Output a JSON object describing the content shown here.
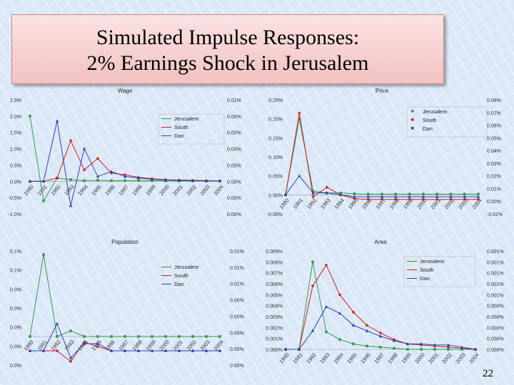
{
  "slide": {
    "title_line1": "Simulated Impulse Responses:",
    "title_line2": "2% Earnings Shock in Jerusalem",
    "page_number": "22",
    "corner_mark": "——"
  },
  "colors": {
    "Jerusalem": "#2e9e48",
    "South": "#c8201e",
    "Dan": "#2846b4"
  },
  "chart_data": [
    {
      "type": "line",
      "title": "Wage",
      "categories": [
        "1990",
        "1991",
        "1992",
        "1993",
        "1994",
        "1995",
        "1996",
        "1997",
        "1998",
        "1999",
        "2000",
        "2001",
        "2002",
        "2003",
        "2004"
      ],
      "left_ticks": [
        "2.5%",
        "2.0%",
        "1.5%",
        "1.0%",
        "0.5%",
        "0.0%",
        "-0.5%",
        "-1.0%"
      ],
      "right_ticks": [
        "0.01%",
        "0.00%",
        "0.00%",
        "0.00%",
        "0.00%",
        "0.00%",
        "0.00%",
        "0.00%"
      ],
      "ylim": [
        -1.0,
        2.5
      ],
      "legend": {
        "position": "right",
        "box": true,
        "marker_style": "line"
      },
      "series": [
        {
          "name": "Jerusalem",
          "axis": "left",
          "values": [
            2.0,
            -0.6,
            0.1,
            0.05,
            0.02,
            0.03,
            0.02,
            0.02,
            0.02,
            0.02,
            0.01,
            0.01,
            0.01,
            0.01,
            0.01
          ]
        },
        {
          "name": "South",
          "axis": "left",
          "values": [
            0.0,
            0.0,
            0.1,
            1.25,
            0.35,
            0.7,
            0.25,
            0.2,
            0.12,
            0.08,
            0.05,
            0.04,
            0.03,
            0.02,
            0.01
          ]
        },
        {
          "name": "Dan",
          "axis": "left",
          "values": [
            0.0,
            0.0,
            1.85,
            -0.75,
            1.0,
            0.15,
            0.3,
            0.15,
            0.1,
            0.06,
            0.04,
            0.03,
            0.02,
            0.01,
            0.01
          ]
        }
      ]
    },
    {
      "type": "line",
      "title": "Price",
      "categories": [
        "1990",
        "1991",
        "1992",
        "1993",
        "1994",
        "1995",
        "1996",
        "1997",
        "1998",
        "1999",
        "2000",
        "2001",
        "2002",
        "2003",
        "2004"
      ],
      "left_ticks": [
        "0.25%",
        "0.20%",
        "0.15%",
        "0.10%",
        "0.05%",
        "0.00%",
        "-0.05%"
      ],
      "right_ticks": [
        "0.08%",
        "0.07%",
        "0.06%",
        "0.05%",
        "0.04%",
        "0.03%",
        "0.02%",
        "0.01%",
        "0.00%",
        "-0.01%"
      ],
      "ylim": [
        -0.05,
        0.25
      ],
      "legend": {
        "position": "top-right",
        "box": true,
        "marker_style": "marker"
      },
      "series": [
        {
          "name": "Jerusalem",
          "axis": "left",
          "values": [
            0.0,
            0.2,
            0.01,
            0.005,
            0.005,
            0.003,
            0.002,
            0.002,
            0.002,
            0.002,
            0.002,
            0.002,
            0.002,
            0.002,
            0.002
          ]
        },
        {
          "name": "South",
          "axis": "left",
          "values": [
            0.0,
            0.215,
            -0.005,
            0.02,
            0.0,
            -0.01,
            -0.012,
            -0.012,
            -0.012,
            -0.012,
            -0.012,
            -0.012,
            -0.012,
            -0.012,
            -0.012
          ]
        },
        {
          "name": "Dan",
          "axis": "left",
          "values": [
            0.0,
            0.05,
            0.005,
            0.005,
            0.0,
            -0.005,
            -0.005,
            -0.005,
            -0.005,
            -0.005,
            -0.005,
            -0.005,
            -0.005,
            -0.005,
            -0.005
          ]
        }
      ]
    },
    {
      "type": "line",
      "title": "Population",
      "categories": [
        "1990",
        "1991",
        "1992",
        "1993",
        "1994",
        "1995",
        "1996",
        "1997",
        "1998",
        "1999",
        "2000",
        "2001",
        "2002",
        "2003",
        "2004"
      ],
      "left_ticks": [
        "0.1%",
        "0.1%",
        "0.0%",
        "0.0%",
        "0.0%",
        "0.0%",
        "0.0%"
      ],
      "right_ticks": [
        "0.01%",
        "0.01%",
        "0.01%",
        "0.00%",
        "0.00%",
        "0.00%",
        "0.00%",
        "0.00%"
      ],
      "ylim": [
        -0.04,
        0.12
      ],
      "legend": {
        "position": "top-right",
        "box": false,
        "marker_style": "line"
      },
      "series": [
        {
          "name": "Jerusalem",
          "axis": "left",
          "values": [
            0.0,
            0.115,
            0.0,
            0.008,
            0.0,
            0.0,
            0.0,
            0.0,
            0.0,
            0.0,
            0.0,
            0.0,
            0.0,
            0.0,
            0.0
          ]
        },
        {
          "name": "South",
          "axis": "left",
          "values": [
            -0.02,
            -0.02,
            -0.02,
            -0.035,
            -0.008,
            -0.014,
            -0.02,
            -0.02,
            -0.02,
            -0.02,
            -0.02,
            -0.02,
            -0.02,
            -0.02,
            -0.02
          ]
        },
        {
          "name": "Dan",
          "axis": "left",
          "values": [
            -0.02,
            -0.02,
            0.018,
            -0.03,
            -0.01,
            -0.01,
            -0.02,
            -0.02,
            -0.02,
            -0.02,
            -0.02,
            -0.02,
            -0.02,
            -0.02,
            -0.02
          ]
        }
      ]
    },
    {
      "type": "line",
      "title": "Area",
      "categories": [
        "1990",
        "1991",
        "1992",
        "1993",
        "1994",
        "1995",
        "1996",
        "1997",
        "1998",
        "1999",
        "2000",
        "2001",
        "2002",
        "2003",
        "2004"
      ],
      "left_ticks": [
        "0.009%",
        "0.008%",
        "0.007%",
        "0.006%",
        "0.005%",
        "0.004%",
        "0.003%",
        "0.002%",
        "0.001%",
        "0.000%"
      ],
      "right_ticks": [
        "0.001%",
        "0.001%",
        "0.001%",
        "0.001%",
        "0.001%",
        "0.000%",
        "0.000%",
        "0.000%",
        "0.000%",
        "0.000%"
      ],
      "ylim": [
        0.0,
        0.009
      ],
      "legend": {
        "position": "top-right",
        "box": true,
        "marker_style": "line"
      },
      "series": [
        {
          "name": "Jerusalem",
          "axis": "left",
          "values": [
            0.0,
            0.0,
            0.008,
            0.0016,
            0.0009,
            0.0005,
            0.0003,
            0.0002,
            0.0001,
            0.0,
            0.0,
            0.0,
            0.0,
            0.0,
            0.0
          ]
        },
        {
          "name": "South",
          "axis": "left",
          "values": [
            0.0,
            0.0,
            0.0058,
            0.0077,
            0.005,
            0.0034,
            0.0022,
            0.0015,
            0.0009,
            0.0005,
            0.0004,
            0.0003,
            0.0002,
            0.0001,
            0.0
          ]
        },
        {
          "name": "Dan",
          "axis": "left",
          "values": [
            0.0,
            0.0,
            0.0017,
            0.0039,
            0.0033,
            0.0022,
            0.0017,
            0.0012,
            0.0008,
            0.0005,
            0.0005,
            0.0004,
            0.0004,
            0.0002,
            0.0
          ]
        }
      ]
    }
  ]
}
